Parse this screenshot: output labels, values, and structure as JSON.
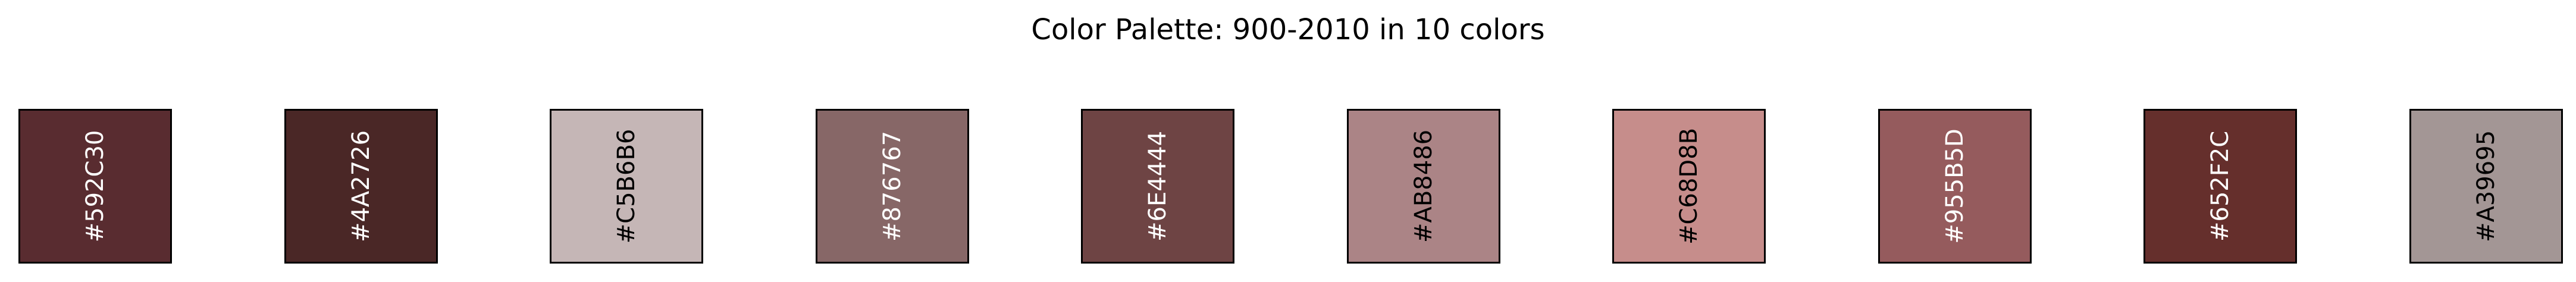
{
  "chart_data": {
    "type": "palette",
    "title": "Color Palette: 900-2010 in 10 colors",
    "swatches": [
      {
        "hex": "#592C30",
        "label": "#592C30",
        "text_color": "#FFFFFF"
      },
      {
        "hex": "#4A2726",
        "label": "#4A2726",
        "text_color": "#FFFFFF"
      },
      {
        "hex": "#C5B6B6",
        "label": "#C5B6B6",
        "text_color": "#000000"
      },
      {
        "hex": "#876767",
        "label": "#876767",
        "text_color": "#FFFFFF"
      },
      {
        "hex": "#6E4444",
        "label": "#6E4444",
        "text_color": "#FFFFFF"
      },
      {
        "hex": "#AB8486",
        "label": "#AB8486",
        "text_color": "#000000"
      },
      {
        "hex": "#C68D8B",
        "label": "#C68D8B",
        "text_color": "#000000"
      },
      {
        "hex": "#955B5D",
        "label": "#955B5D",
        "text_color": "#FFFFFF"
      },
      {
        "hex": "#652F2C",
        "label": "#652F2C",
        "text_color": "#FFFFFF"
      },
      {
        "hex": "#A39695",
        "label": "#A39695",
        "text_color": "#000000"
      }
    ]
  }
}
